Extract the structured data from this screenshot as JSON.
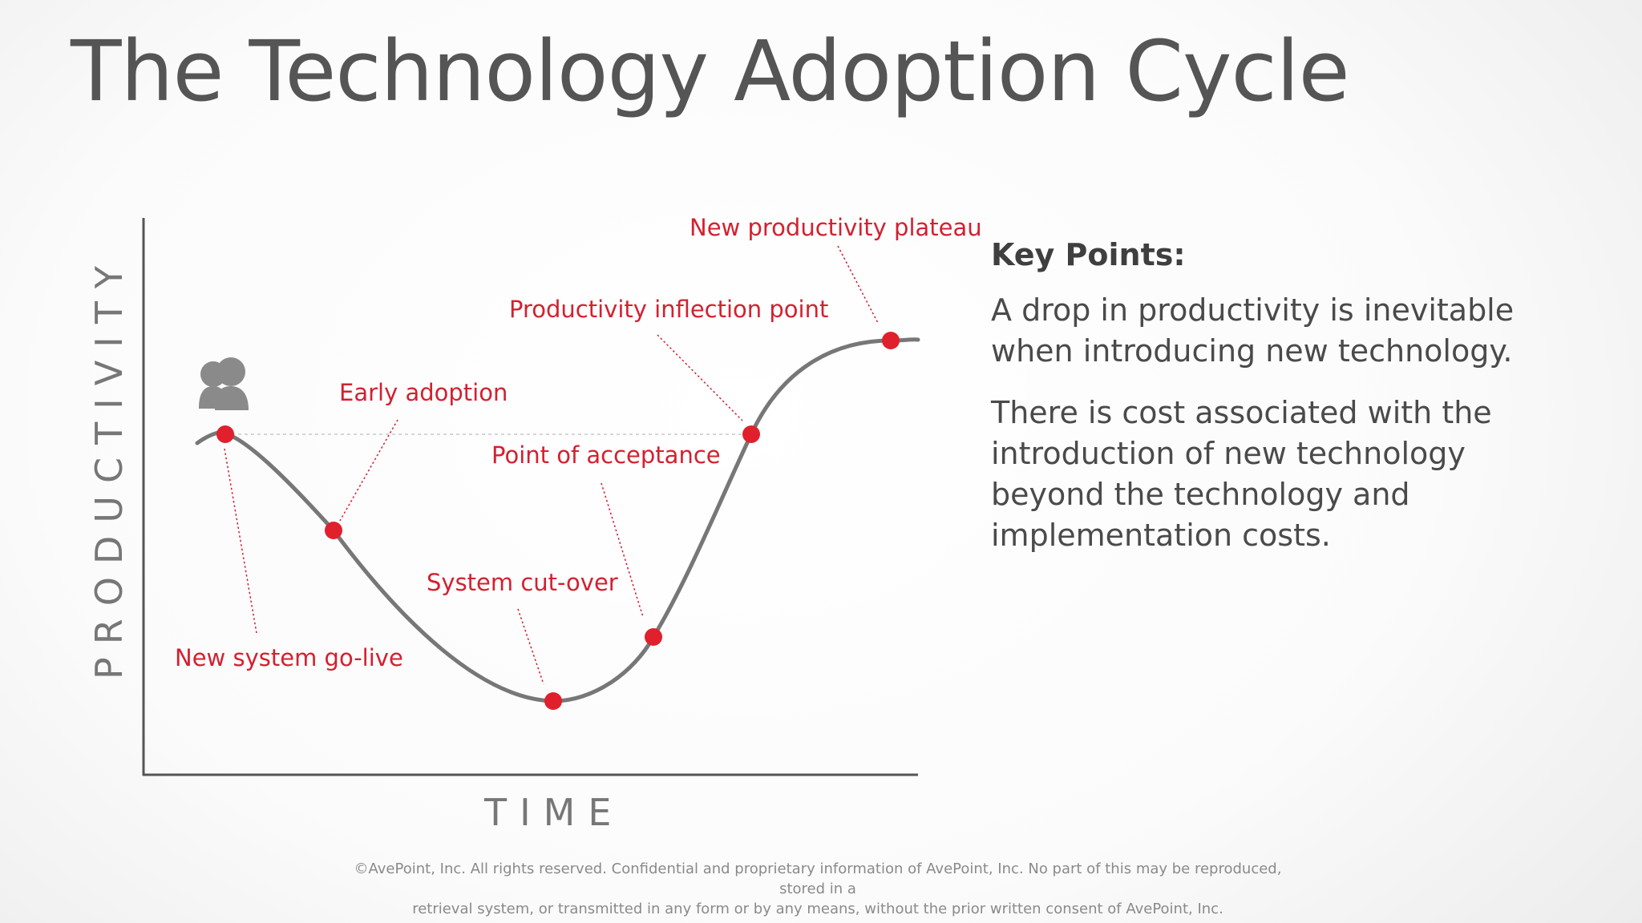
{
  "title": "The Technology Adoption Cycle",
  "diagram": {
    "y_axis_label": "PRODUCTIVITY",
    "x_axis_label": "TIME",
    "milestones": [
      {
        "label": "New system go-live"
      },
      {
        "label": "Early adoption"
      },
      {
        "label": "System cut-over"
      },
      {
        "label": "Point of acceptance"
      },
      {
        "label": "Productivity inflection point"
      },
      {
        "label": "New productivity plateau"
      }
    ],
    "colors": {
      "curve": "#777777",
      "marker": "#e0202c",
      "label": "#d42030",
      "axis": "#555555"
    }
  },
  "key_points": {
    "heading": "Key Points:",
    "paragraphs": [
      "A drop in productivity is inevitable when introducing new technology.",
      "There is cost associated with the introduction of new technology beyond the technology and implementation costs."
    ]
  },
  "footer": {
    "line1": "©AvePoint, Inc. All rights reserved. Confidential and proprietary information of AvePoint, Inc. No part of this may be reproduced, stored in a",
    "line2": "retrieval system, or transmitted in any form or by any means, without the prior written consent of AvePoint, Inc."
  }
}
